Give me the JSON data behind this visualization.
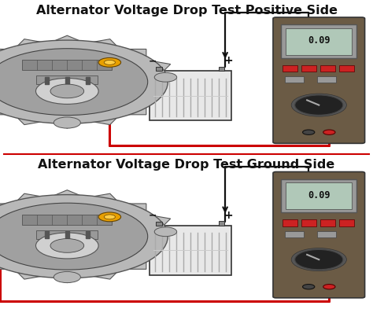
{
  "title_top": "Alternator Voltage Drop Test Positive Side",
  "title_bottom": "Alternator Voltage Drop Test Ground Side",
  "title_fontsize": 11.5,
  "title_fontweight": "bold",
  "bg_color": "#ffffff",
  "red_wire_color": "#cc0000",
  "black_wire_color": "#111111",
  "display_reading": "0.09",
  "alt_body_color": "#c8c8c8",
  "alt_inner_color": "#888888",
  "alt_dark_color": "#444444",
  "battery_body_color": "#e8e8e8",
  "battery_line_color": "#aaaaaa",
  "mm_body_color": "#6b5b45",
  "mm_display_bg": "#b8c8b0",
  "mm_display_frame": "#888888",
  "mm_btn_red": "#cc3333",
  "mm_btn_gray": "#888888",
  "mm_knob_color": "#222222"
}
